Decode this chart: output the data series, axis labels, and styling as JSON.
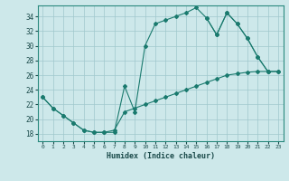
{
  "xlabel": "Humidex (Indice chaleur)",
  "xlim": [
    -0.5,
    23.5
  ],
  "ylim": [
    17.0,
    35.5
  ],
  "yticks": [
    18,
    20,
    22,
    24,
    26,
    28,
    30,
    32,
    34
  ],
  "xticks": [
    0,
    1,
    2,
    3,
    4,
    5,
    6,
    7,
    8,
    9,
    10,
    11,
    12,
    13,
    14,
    15,
    16,
    17,
    18,
    19,
    20,
    21,
    22,
    23
  ],
  "bg_color": "#cde8ea",
  "grid_color": "#a0c8cc",
  "line_color": "#1a7a6e",
  "line1_x": [
    0,
    1,
    2,
    3,
    4,
    5,
    6,
    7,
    8,
    9,
    10,
    11,
    12,
    13,
    14,
    15,
    16,
    17,
    18,
    19,
    20,
    21,
    22
  ],
  "line1_y": [
    23.0,
    21.5,
    20.5,
    19.5,
    18.5,
    18.2,
    18.2,
    18.2,
    24.5,
    21.0,
    30.0,
    33.0,
    33.5,
    34.0,
    34.5,
    35.2,
    33.8,
    31.5,
    34.5,
    33.0,
    31.0,
    28.5,
    26.5
  ],
  "line2_x": [
    0,
    1,
    2,
    3,
    4,
    5,
    6,
    7,
    8,
    9,
    10,
    11,
    12,
    13,
    14,
    15,
    16,
    17,
    18,
    19,
    20,
    21,
    22,
    23
  ],
  "line2_y": [
    23.0,
    21.5,
    20.5,
    19.5,
    18.5,
    18.2,
    18.2,
    18.5,
    21.0,
    21.5,
    22.0,
    22.5,
    23.0,
    23.5,
    24.0,
    24.5,
    25.0,
    25.5,
    26.0,
    26.2,
    26.4,
    26.5,
    26.5,
    26.5
  ],
  "line3_x": [
    16,
    17,
    18,
    19,
    20,
    21,
    22,
    23
  ],
  "line3_y": [
    33.8,
    31.5,
    34.5,
    33.0,
    31.0,
    28.5,
    26.5,
    26.5
  ]
}
